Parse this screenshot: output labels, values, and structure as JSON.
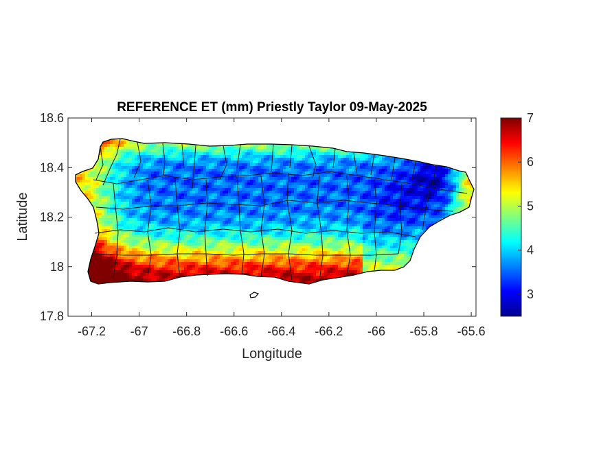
{
  "chart_data": {
    "type": "heatmap",
    "title": "REFERENCE ET (mm) Priestly Taylor 09-May-2025",
    "xlabel": "Longitude",
    "ylabel": "Latitude",
    "xlim": [
      -67.3,
      -65.58
    ],
    "ylim": [
      17.8,
      18.6
    ],
    "xticks": [
      -67.2,
      -67,
      -66.8,
      -66.6,
      -66.4,
      -66.2,
      -66,
      -65.8,
      -65.6
    ],
    "xtick_labels": [
      "-67.2",
      "-67",
      "-66.8",
      "-66.6",
      "-66.4",
      "-66.2",
      "-66",
      "-65.8",
      "-65.6"
    ],
    "yticks": [
      17.8,
      18,
      18.2,
      18.4,
      18.6
    ],
    "ytick_labels": [
      "17.8",
      "18",
      "18.2",
      "18.4",
      "18.6"
    ],
    "colorbar": {
      "colormap": "jet",
      "range": [
        2.5,
        7
      ],
      "ticks": [
        3,
        4,
        5,
        6,
        7
      ],
      "tick_labels": [
        "3",
        "4",
        "5",
        "6",
        "7"
      ]
    },
    "grid": false,
    "field": {
      "west_coast": 5.7,
      "north_coast": 5.0,
      "central_interior": 3.5,
      "east_interior": 3.0,
      "northeast_peak_low": 2.8,
      "east_coast": 6.0,
      "south_coast": 6.8
    }
  }
}
